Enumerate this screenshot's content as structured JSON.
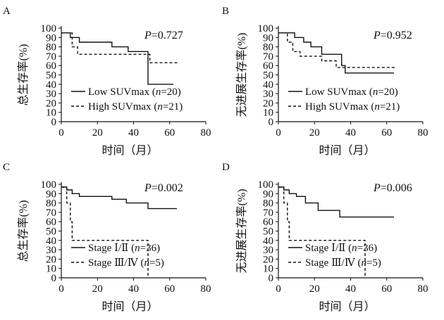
{
  "figure": {
    "panels": [
      {
        "letter": "A",
        "pvalue": "P=0.727"
      },
      {
        "letter": "B",
        "pvalue": "P=0.952"
      },
      {
        "letter": "C",
        "pvalue": "P=0.002"
      },
      {
        "letter": "D",
        "pvalue": "P=0.006"
      }
    ]
  },
  "chart_data": [
    {
      "panel": "A",
      "type": "line",
      "subtype": "kaplan-meier",
      "title": "",
      "xlabel": "时间（月）",
      "ylabel": "总生存率(%)",
      "xlim": [
        0,
        80
      ],
      "ylim": [
        0,
        100
      ],
      "xticks": [
        0,
        20,
        40,
        60,
        80
      ],
      "yticks": [
        0,
        10,
        20,
        30,
        40,
        50,
        60,
        70,
        80,
        90,
        100
      ],
      "annotation": "P=0.727",
      "legend_position": "bottom-left",
      "series": [
        {
          "name": "Low SUVmax (n=20)",
          "style": "solid",
          "x": [
            0,
            5,
            5,
            10,
            10,
            28,
            28,
            37,
            37,
            48,
            48,
            62
          ],
          "y": [
            95,
            95,
            90,
            90,
            85,
            85,
            80,
            80,
            75,
            75,
            40,
            40
          ]
        },
        {
          "name": "High SUVmax (n=21)",
          "style": "dashed",
          "x": [
            0,
            6,
            6,
            9,
            9,
            49,
            49,
            65
          ],
          "y": [
            95,
            95,
            80,
            80,
            72,
            72,
            63,
            63
          ]
        }
      ]
    },
    {
      "panel": "B",
      "type": "line",
      "subtype": "kaplan-meier",
      "title": "",
      "xlabel": "时间（月）",
      "ylabel": "无进展生存率(%)",
      "xlim": [
        0,
        80
      ],
      "ylim": [
        0,
        100
      ],
      "xticks": [
        0,
        20,
        40,
        60,
        80
      ],
      "yticks": [
        0,
        10,
        20,
        30,
        40,
        50,
        60,
        70,
        80,
        90,
        100
      ],
      "annotation": "P=0.952",
      "legend_position": "bottom-left",
      "series": [
        {
          "name": "Low SUVmax (n=20)",
          "style": "solid",
          "x": [
            0,
            9,
            9,
            14,
            14,
            18,
            18,
            24,
            24,
            35,
            35,
            37,
            37,
            48,
            48,
            64
          ],
          "y": [
            95,
            95,
            90,
            90,
            85,
            85,
            80,
            80,
            72,
            72,
            60,
            60,
            52,
            52,
            52,
            52
          ]
        },
        {
          "name": "High SUVmax (n=21)",
          "style": "dashed",
          "x": [
            0,
            5,
            5,
            8,
            8,
            12,
            12,
            24,
            24,
            32,
            32,
            46,
            46,
            50,
            50,
            65
          ],
          "y": [
            95,
            95,
            85,
            85,
            75,
            75,
            70,
            70,
            65,
            65,
            58,
            58,
            58,
            58,
            58,
            58
          ]
        }
      ]
    },
    {
      "panel": "C",
      "type": "line",
      "subtype": "kaplan-meier",
      "title": "",
      "xlabel": "时间（月）",
      "ylabel": "总生存率(%)",
      "xlim": [
        0,
        80
      ],
      "ylim": [
        0,
        100
      ],
      "xticks": [
        0,
        20,
        40,
        60,
        80
      ],
      "yticks": [
        0,
        10,
        20,
        30,
        40,
        50,
        60,
        70,
        80,
        90,
        100
      ],
      "annotation": "P=0.002",
      "legend_position": "bottom-left",
      "series": [
        {
          "name": "Stage Ⅰ/Ⅱ (n=36)",
          "style": "solid",
          "x": [
            0,
            3,
            3,
            6,
            6,
            10,
            10,
            28,
            28,
            36,
            36,
            48,
            48,
            64
          ],
          "y": [
            97,
            97,
            94,
            94,
            90,
            90,
            87,
            87,
            84,
            84,
            80,
            80,
            74,
            74
          ]
        },
        {
          "name": "Stage Ⅲ/Ⅳ (n=5)",
          "style": "dashed",
          "x": [
            0,
            3,
            3,
            5,
            5,
            6,
            6,
            7,
            7,
            48,
            48
          ],
          "y": [
            97,
            97,
            80,
            80,
            60,
            60,
            40,
            40,
            40,
            40,
            0
          ]
        }
      ]
    },
    {
      "panel": "D",
      "type": "line",
      "subtype": "kaplan-meier",
      "title": "",
      "xlabel": "时间（月）",
      "ylabel": "无进展生存率(%)",
      "xlim": [
        0,
        80
      ],
      "ylim": [
        0,
        100
      ],
      "xticks": [
        0,
        20,
        40,
        60,
        80
      ],
      "yticks": [
        0,
        10,
        20,
        30,
        40,
        50,
        60,
        70,
        80,
        90,
        100
      ],
      "annotation": "P=0.006",
      "legend_position": "bottom-left",
      "series": [
        {
          "name": "Stage Ⅰ/Ⅱ (n=36)",
          "style": "solid",
          "x": [
            0,
            3,
            3,
            6,
            6,
            10,
            10,
            15,
            15,
            22,
            22,
            34,
            34,
            37,
            37,
            64
          ],
          "y": [
            97,
            97,
            94,
            94,
            90,
            90,
            87,
            87,
            80,
            80,
            72,
            72,
            65,
            65,
            65,
            65
          ]
        },
        {
          "name": "Stage Ⅲ/Ⅳ (n=5)",
          "style": "dashed",
          "x": [
            0,
            3,
            3,
            5,
            5,
            6,
            6,
            8,
            8,
            48,
            48
          ],
          "y": [
            97,
            97,
            80,
            80,
            60,
            60,
            40,
            40,
            40,
            40,
            0
          ]
        }
      ]
    }
  ]
}
